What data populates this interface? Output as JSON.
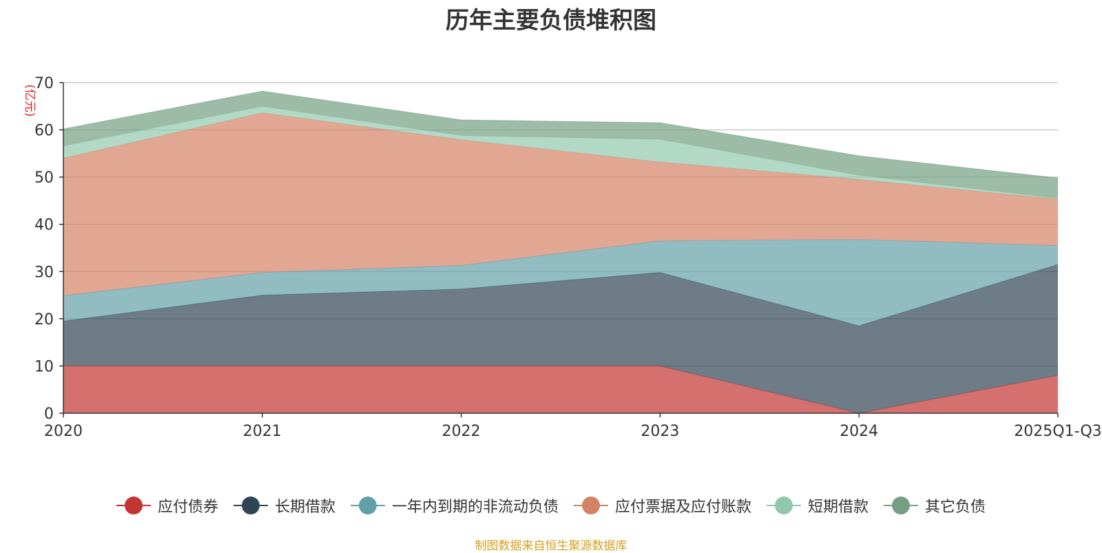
{
  "chart_data": {
    "type": "area",
    "stacked": true,
    "title": "历年主要负债堆积图",
    "ylabel": "(亿元)",
    "xlabel": "",
    "ylim": [
      0,
      70
    ],
    "yticks": [
      0,
      10,
      20,
      30,
      40,
      50,
      60,
      70
    ],
    "categories": [
      "2020",
      "2021",
      "2022",
      "2023",
      "2024",
      "2025Q1-Q3"
    ],
    "series": [
      {
        "name": "应付债券",
        "color": "#c23531",
        "values": [
          10.0,
          10.0,
          10.0,
          10.0,
          0.0,
          8.0
        ]
      },
      {
        "name": "长期借款",
        "color": "#2f4554",
        "values": [
          9.5,
          15.0,
          16.3,
          19.8,
          18.5,
          23.5
        ]
      },
      {
        "name": "一年内到期的非流动负债",
        "color": "#61a0a8",
        "values": [
          5.4,
          4.8,
          5.0,
          6.7,
          18.3,
          4.0
        ]
      },
      {
        "name": "应付票据及应付账款",
        "color": "#d48265",
        "values": [
          29.1,
          33.8,
          26.6,
          16.7,
          12.7,
          9.8
        ]
      },
      {
        "name": "短期借款",
        "color": "#91c7ae",
        "values": [
          2.6,
          1.4,
          0.9,
          4.8,
          0.9,
          0.2
        ]
      },
      {
        "name": "其它负债",
        "color": "#749f83",
        "values": [
          3.6,
          3.2,
          3.3,
          3.5,
          4.1,
          4.3
        ]
      }
    ],
    "legend_position": "bottom"
  },
  "source_note": "制图数据来自恒生聚源数据库",
  "colors": {
    "title": "#333333",
    "axis": "#333333",
    "grid": "#cccccc",
    "ylabel": "#e52020",
    "source_note": "#d4a020"
  }
}
